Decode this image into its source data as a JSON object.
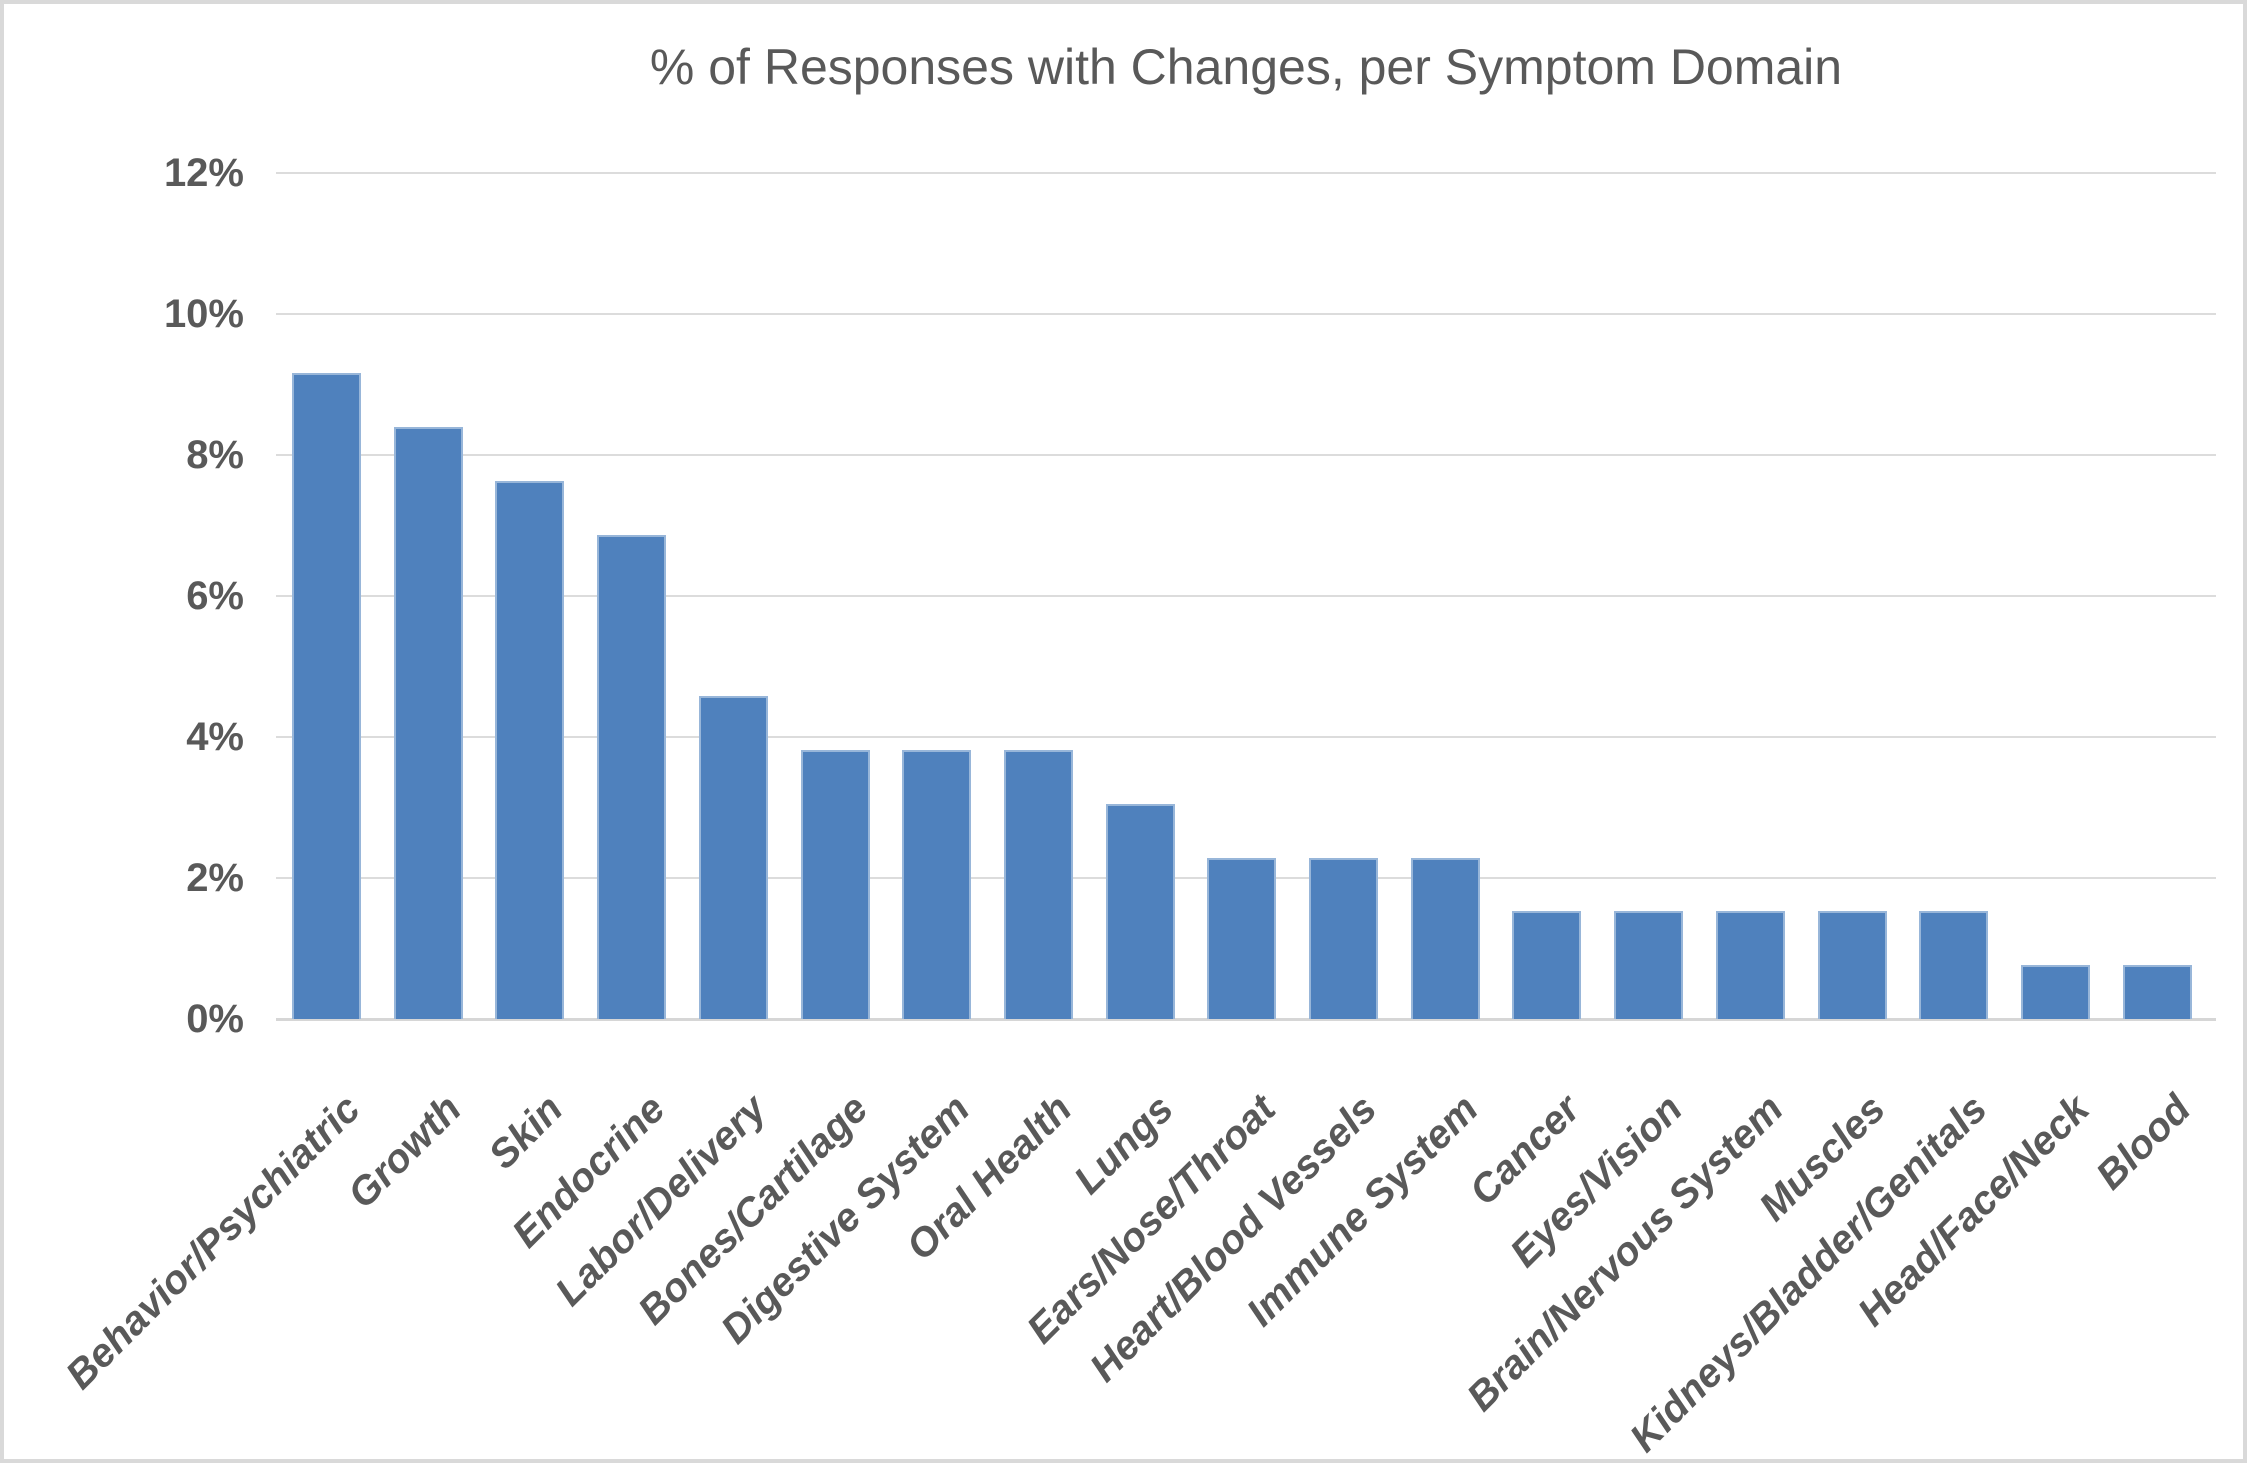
{
  "chart_data": {
    "type": "bar",
    "title": "% of Responses with Changes, per Symptom Domain",
    "categories": [
      "Behavior/Psychiatric",
      "Growth",
      "Skin",
      "Endocrine",
      "Labor/Delivery",
      "Bones/Cartilage",
      "Digestive System",
      "Oral Health",
      "Lungs",
      "Ears/Nose/Throat",
      "Heart/Blood Vessels",
      "Immune System",
      "Cancer",
      "Eyes/Vision",
      "Brain/Nervous System",
      "Muscles",
      "Kidneys/Bladder/Genitals",
      "Head/Face/Neck",
      "Blood"
    ],
    "values": [
      9.16,
      8.4,
      7.63,
      6.87,
      4.58,
      3.82,
      3.82,
      3.82,
      3.05,
      2.29,
      2.29,
      2.29,
      1.53,
      1.53,
      1.53,
      1.53,
      1.53,
      0.76,
      0.76
    ],
    "y_ticks": [
      "0%",
      "2%",
      "4%",
      "6%",
      "8%",
      "10%",
      "12%"
    ],
    "ylim": [
      0,
      12
    ],
    "y_tick_step": 2,
    "xlabel": "",
    "ylabel": "",
    "grid": true,
    "legend": "none",
    "bar_color": "#4f81bd",
    "text_color": "#595959",
    "gridline_color": "#dcdcdc",
    "background_color": "#ffffff",
    "border_color": "#d9d9d9"
  }
}
